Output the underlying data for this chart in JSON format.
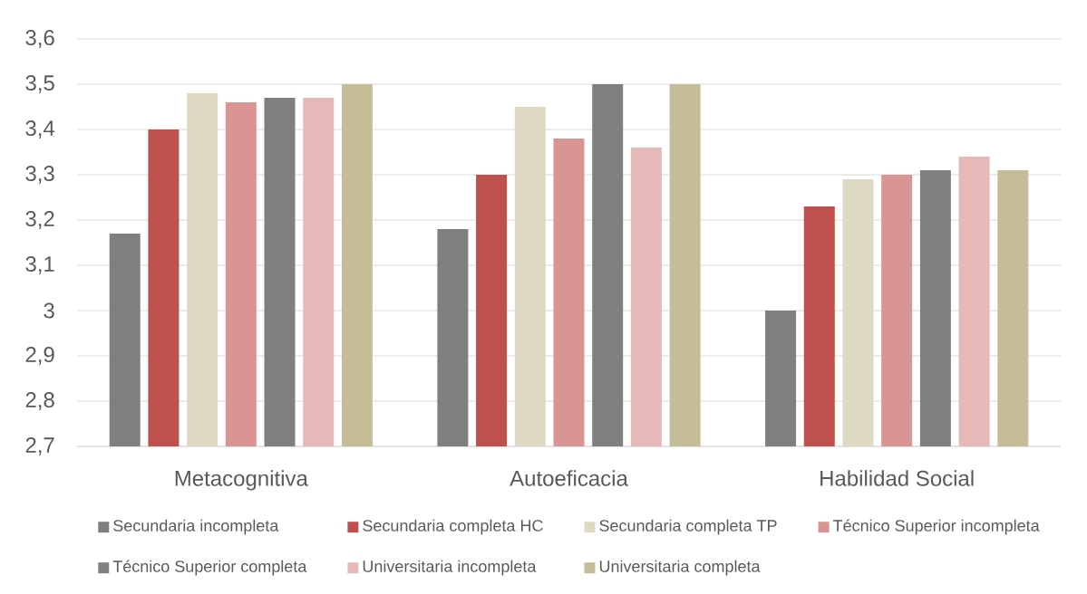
{
  "chart_data": {
    "type": "bar",
    "categories": [
      "Metacognitiva",
      "Autoeficacia",
      "Habilidad Social"
    ],
    "series": [
      {
        "name": "Secundaria incompleta",
        "color": "#7f7f7f",
        "values": [
          3.17,
          3.18,
          3.0
        ]
      },
      {
        "name": "Secundaria completa HC",
        "color": "#c0504d",
        "values": [
          3.4,
          3.3,
          3.23
        ]
      },
      {
        "name": "Secundaria completa TP",
        "color": "#ddd9c3",
        "values": [
          3.48,
          3.45,
          3.29
        ]
      },
      {
        "name": "Técnico Superior incompleta",
        "color": "#d99594",
        "values": [
          3.46,
          3.38,
          3.3
        ]
      },
      {
        "name": "Técnico Superior completa",
        "color": "#7f7f7f",
        "values": [
          3.47,
          3.5,
          3.31
        ]
      },
      {
        "name": "Universitaria incompleta",
        "color": "#e6b9b8",
        "values": [
          3.47,
          3.36,
          3.34
        ]
      },
      {
        "name": "Universitaria completa",
        "color": "#c4bd97",
        "values": [
          3.5,
          3.5,
          3.31
        ]
      }
    ],
    "ylim": [
      2.7,
      3.6
    ],
    "yticks": [
      {
        "value": 2.7,
        "label": "2,7"
      },
      {
        "value": 2.8,
        "label": "2,8"
      },
      {
        "value": 2.9,
        "label": "2,9"
      },
      3,
      {
        "value": 3.1,
        "label": "3,1"
      },
      {
        "value": 3.2,
        "label": "3,2"
      },
      {
        "value": 3.3,
        "label": "3,3"
      },
      {
        "value": 3.4,
        "label": "3,4"
      },
      {
        "value": 3.5,
        "label": "3,5"
      },
      {
        "value": 3.6,
        "label": "3,6"
      }
    ],
    "grid": "y",
    "legend": "bottom"
  }
}
